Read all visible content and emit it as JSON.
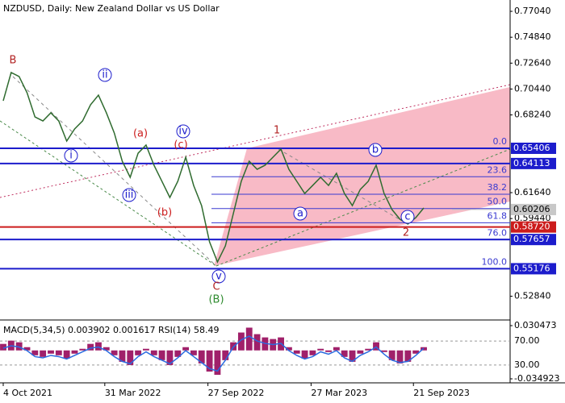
{
  "chart_data": {
    "type": "line",
    "title": "NZDUSD, Daily:  New Zealand Dollar vs US Dollar",
    "ylim": [
      0.5096,
      0.7766
    ],
    "yticks": [
      {
        "value": 0.7704,
        "label": "0.77040"
      },
      {
        "value": 0.7484,
        "label": "0.74840"
      },
      {
        "value": 0.7264,
        "label": "0.72640"
      },
      {
        "value": 0.7044,
        "label": "0.70440"
      },
      {
        "value": 0.6824,
        "label": "0.68240"
      },
      {
        "value": 0.6164,
        "label": "0.61640"
      },
      {
        "value": 0.5944,
        "label": "0.59440"
      },
      {
        "value": 0.5284,
        "label": "0.52840"
      }
    ],
    "x_ticks": [
      {
        "value": 0,
        "label": "4 Oct 2021"
      },
      {
        "value": 12.8,
        "label": "31 Mar 2022"
      },
      {
        "value": 25.8,
        "label": "27 Sep 2022"
      },
      {
        "value": 38.8,
        "label": "27 Mar 2023"
      },
      {
        "value": 51.7,
        "label": "21 Sep 2023"
      }
    ],
    "series": [
      {
        "color": "#2f6b2f",
        "values": [
          0.6944,
          0.7184,
          0.715,
          0.7013,
          0.6807,
          0.6773,
          0.6842,
          0.6773,
          0.6602,
          0.6705,
          0.6773,
          0.691,
          0.6992,
          0.6842,
          0.667,
          0.6431,
          0.6294,
          0.6499,
          0.6568,
          0.6397,
          0.626,
          0.6123,
          0.626,
          0.6465,
          0.6225,
          0.6054,
          0.5746,
          0.5575,
          0.5712,
          0.5986,
          0.626,
          0.6431,
          0.6362,
          0.6397,
          0.6465,
          0.6534,
          0.6362,
          0.626,
          0.6157,
          0.6225,
          0.6294,
          0.6225,
          0.6328,
          0.6157,
          0.6054,
          0.6191,
          0.626,
          0.6397,
          0.6157,
          0.602,
          0.5938,
          0.5897,
          0.5952,
          0.6034
        ]
      }
    ],
    "levels": [
      {
        "value": 0.65406,
        "color": "#1c1ccc"
      },
      {
        "value": 0.64113,
        "color": "#1c1ccc"
      },
      {
        "value": 0.60206,
        "color": "#c8c8c8",
        "line": false
      },
      {
        "value": 0.5872,
        "label": "0.58720",
        "color": "#cc1c1c"
      },
      {
        "value": 0.57657,
        "color": "#1c1ccc"
      },
      {
        "value": 0.55176,
        "color": "#1c1ccc"
      }
    ],
    "fib_levels": [
      {
        "label": "0.0",
        "price": 0.65406
      },
      {
        "label": "23.6",
        "price": 0.6299
      },
      {
        "label": "38.2",
        "price": 0.615
      },
      {
        "label": "50.0",
        "price": 0.6029
      },
      {
        "label": "61.8",
        "price": 0.5908
      },
      {
        "label": "76.0",
        "price": 0.5763
      },
      {
        "label": "100.0",
        "price": 0.55176
      }
    ],
    "wave_labels": [
      {
        "text": "B",
        "color": "#b22222"
      },
      {
        "text": "ii",
        "color": "#1c1ccc",
        "circled": true
      },
      {
        "text": "i",
        "color": "#1c1ccc",
        "circled": true
      },
      {
        "text": "iii",
        "color": "#1c1ccc",
        "circled": true
      },
      {
        "text": "(a)",
        "color": "#cc1c1c"
      },
      {
        "text": "iv",
        "color": "#1c1ccc",
        "circled": true
      },
      {
        "text": "(c)",
        "color": "#cc1c1c"
      },
      {
        "text": "(b)",
        "color": "#cc1c1c"
      },
      {
        "text": "v",
        "color": "#1c1ccc",
        "circled": true
      },
      {
        "text": "C",
        "color": "#b22222"
      },
      {
        "text": "(B)",
        "color": "#2e8b2e"
      },
      {
        "text": "1",
        "color": "#b22222"
      },
      {
        "text": "a",
        "color": "#1c1ccc",
        "circled": true
      },
      {
        "text": "b",
        "color": "#1c1ccc",
        "circled": true
      },
      {
        "text": "c",
        "color": "#1c1ccc",
        "circled": true
      },
      {
        "text": "2",
        "color": "#b22222"
      }
    ],
    "indicator": {
      "header": "MACD(5,34,5) 0.003902 0.001617 RSI(14) 58.49",
      "macd_lim": [
        -0.034923,
        0.030473
      ],
      "macd_ticks": [
        0.030473,
        -0.034923
      ],
      "macd_color": "#a0206a",
      "macd_values": [
        0.008,
        0.012,
        0.01,
        0.004,
        -0.006,
        -0.008,
        -0.004,
        -0.006,
        -0.01,
        -0.004,
        0.002,
        0.008,
        0.01,
        0.004,
        -0.006,
        -0.014,
        -0.018,
        -0.006,
        0.002,
        -0.006,
        -0.012,
        -0.018,
        -0.008,
        0.004,
        -0.006,
        -0.016,
        -0.026,
        -0.03,
        -0.012,
        0.01,
        0.022,
        0.028,
        0.02,
        0.016,
        0.014,
        0.016,
        0.004,
        -0.004,
        -0.01,
        -0.006,
        0.002,
        -0.002,
        0.004,
        -0.008,
        -0.014,
        -0.004,
        0.002,
        0.01,
        -0.002,
        -0.012,
        -0.016,
        -0.014,
        -0.004,
        0.004
      ],
      "rsi_lim": [
        7,
        101
      ],
      "rsi_ticks": [
        {
          "value": 70,
          "label": "70.00"
        },
        {
          "value": 30,
          "label": "30.00"
        }
      ],
      "rsi_color": "#2a6be0",
      "rsi_values": [
        58,
        62,
        60,
        54,
        44,
        42,
        46,
        44,
        40,
        46,
        52,
        58,
        60,
        54,
        44,
        36,
        32,
        44,
        52,
        44,
        38,
        32,
        42,
        54,
        44,
        34,
        24,
        20,
        38,
        60,
        72,
        78,
        70,
        66,
        64,
        66,
        54,
        46,
        40,
        44,
        52,
        48,
        54,
        42,
        36,
        46,
        52,
        60,
        48,
        38,
        34,
        36,
        46,
        58
      ]
    }
  }
}
